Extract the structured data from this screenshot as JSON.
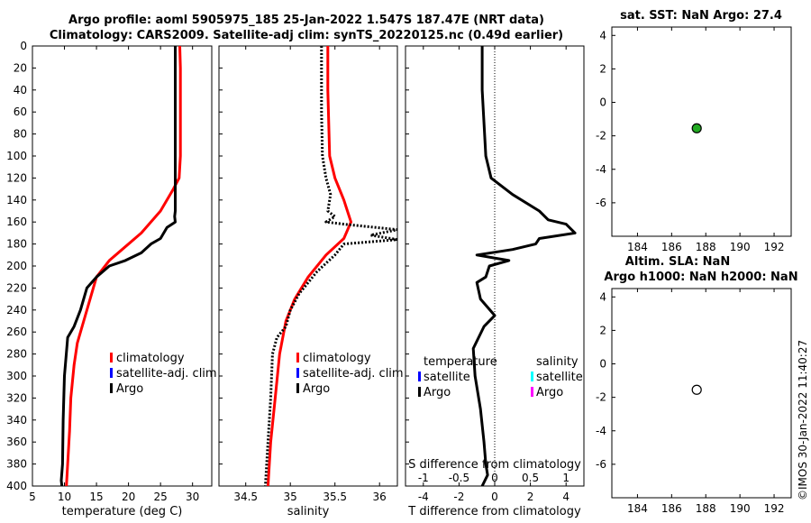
{
  "titles": {
    "line1": "Argo profile: aoml 5905975_185 25-Jan-2022 1.547S 187.47E (NRT data)",
    "line2": "Climatology: CARS2009. Satellite-adj clim: synTS_20220125.nc (0.49d earlier)",
    "sst": "sat. SST: NaN Argo: 27.4",
    "sla1": "Altim. SLA: NaN",
    "sla2": "Argo h1000: NaN h2000: NaN"
  },
  "stamp": "©IMOS 30-Jan-2022 11:40:27",
  "colors": {
    "climatology": "#ff0000",
    "satellite": "#0000ff",
    "argo": "#000000",
    "sat_salinity": "#00ffff",
    "argo_salinity": "#ff00ff",
    "marker_fill": "#22aa22"
  },
  "chart_data": [
    {
      "id": "temperature",
      "type": "line",
      "xlabel": "temperature (deg C)",
      "xlim": [
        5,
        33
      ],
      "xticks": [
        5,
        10,
        15,
        20,
        25,
        30
      ],
      "ylim": [
        0,
        400
      ],
      "yticks": [
        0,
        20,
        40,
        60,
        80,
        100,
        120,
        140,
        160,
        180,
        200,
        220,
        240,
        260,
        280,
        300,
        320,
        340,
        360,
        380,
        400
      ],
      "y_reversed": true,
      "legend": [
        "climatology",
        "satellite-adj. clim",
        "Argo"
      ],
      "series": [
        {
          "name": "climatology",
          "style": "solid-red",
          "points": [
            [
              28,
              0
            ],
            [
              28.1,
              20
            ],
            [
              28.1,
              60
            ],
            [
              28.1,
              100
            ],
            [
              27.9,
              120
            ],
            [
              27,
              130
            ],
            [
              25,
              150
            ],
            [
              22,
              170
            ],
            [
              19,
              185
            ],
            [
              17,
              195
            ],
            [
              15,
              210
            ],
            [
              14,
              230
            ],
            [
              13,
              250
            ],
            [
              12,
              270
            ],
            [
              11.5,
              290
            ],
            [
              11,
              320
            ],
            [
              10.8,
              350
            ],
            [
              10.5,
              380
            ],
            [
              10.3,
              400
            ]
          ]
        },
        {
          "name": "Argo",
          "style": "solid-black",
          "points": [
            [
              27.3,
              0
            ],
            [
              27.3,
              40
            ],
            [
              27.3,
              100
            ],
            [
              27.3,
              150
            ],
            [
              27.2,
              155
            ],
            [
              27.3,
              160
            ],
            [
              26,
              165
            ],
            [
              25,
              175
            ],
            [
              23.5,
              180
            ],
            [
              22,
              188
            ],
            [
              19.5,
              195
            ],
            [
              17,
              200
            ],
            [
              15,
              210
            ],
            [
              13.5,
              220
            ],
            [
              12.5,
              240
            ],
            [
              11.5,
              255
            ],
            [
              10.5,
              265
            ],
            [
              10,
              300
            ],
            [
              9.8,
              340
            ],
            [
              9.7,
              380
            ],
            [
              9.5,
              395
            ],
            [
              9.6,
              400
            ]
          ]
        }
      ]
    },
    {
      "id": "salinity",
      "type": "line",
      "xlabel": "salinity",
      "xlim": [
        34.2,
        36.2
      ],
      "xticks": [
        34.5,
        35,
        35.5,
        36
      ],
      "xtick_labels": [
        "34.5",
        "35",
        "35.5",
        "36"
      ],
      "ylim": [
        0,
        400
      ],
      "y_reversed": true,
      "legend": [
        "climatology",
        "satellite-adj. clim",
        "Argo"
      ],
      "series": [
        {
          "name": "climatology",
          "style": "solid-red",
          "points": [
            [
              35.42,
              0
            ],
            [
              35.42,
              40
            ],
            [
              35.44,
              100
            ],
            [
              35.5,
              120
            ],
            [
              35.6,
              140
            ],
            [
              35.68,
              160
            ],
            [
              35.6,
              175
            ],
            [
              35.4,
              190
            ],
            [
              35.2,
              210
            ],
            [
              35.05,
              230
            ],
            [
              34.95,
              250
            ],
            [
              34.88,
              280
            ],
            [
              34.83,
              320
            ],
            [
              34.78,
              360
            ],
            [
              34.75,
              400
            ]
          ]
        },
        {
          "name": "Argo",
          "style": "dotted-black",
          "points": [
            [
              35.35,
              0
            ],
            [
              35.35,
              60
            ],
            [
              35.36,
              100
            ],
            [
              35.4,
              120
            ],
            [
              35.45,
              135
            ],
            [
              35.42,
              150
            ],
            [
              35.5,
              155
            ],
            [
              35.4,
              160
            ],
            [
              35.6,
              162
            ],
            [
              36.2,
              167
            ],
            [
              35.9,
              172
            ],
            [
              36.2,
              176
            ],
            [
              35.6,
              180
            ],
            [
              35.5,
              190
            ],
            [
              35.3,
              205
            ],
            [
              35.1,
              225
            ],
            [
              35.0,
              240
            ],
            [
              34.95,
              255
            ],
            [
              34.85,
              265
            ],
            [
              34.8,
              280
            ],
            [
              34.78,
              320
            ],
            [
              34.75,
              360
            ],
            [
              34.72,
              400
            ]
          ]
        }
      ]
    },
    {
      "id": "difference",
      "type": "line",
      "xlabel": "T difference from climatology",
      "xlim": [
        -5,
        5
      ],
      "xticks": [
        -4,
        -2,
        0,
        2,
        4
      ],
      "top_axis_label": "S difference from climatology",
      "top_axis_ticks": [
        -1,
        -0.5,
        0,
        0.5,
        1
      ],
      "top_axis_tick_labels": [
        "-1",
        "-0.5",
        "0",
        "0.5",
        "1"
      ],
      "ylim": [
        0,
        400
      ],
      "y_reversed": true,
      "legend_groups": {
        "left_title": "temperature",
        "right_title": "salinity",
        "left": [
          "satellite",
          "Argo"
        ],
        "right": [
          "satellite",
          "Argo"
        ]
      },
      "series": [
        {
          "name": "T difference (Argo)",
          "style": "solid-black",
          "points": [
            [
              -0.7,
              0
            ],
            [
              -0.7,
              40
            ],
            [
              -0.5,
              100
            ],
            [
              -0.2,
              120
            ],
            [
              1,
              135
            ],
            [
              2.5,
              150
            ],
            [
              3,
              158
            ],
            [
              4,
              162
            ],
            [
              4.5,
              170
            ],
            [
              2.5,
              175
            ],
            [
              2.3,
              180
            ],
            [
              1,
              185
            ],
            [
              -1,
              190
            ],
            [
              0.8,
              195
            ],
            [
              -0.3,
              200
            ],
            [
              -0.5,
              210
            ],
            [
              -1,
              215
            ],
            [
              -0.8,
              230
            ],
            [
              0,
              245
            ],
            [
              -0.6,
              255
            ],
            [
              -1.2,
              275
            ],
            [
              -1.1,
              300
            ],
            [
              -0.8,
              330
            ],
            [
              -0.6,
              360
            ],
            [
              -0.5,
              380
            ],
            [
              -0.4,
              390
            ],
            [
              -0.7,
              400
            ]
          ]
        }
      ]
    },
    {
      "id": "sst_location",
      "type": "scatter",
      "xlim": [
        182.5,
        193
      ],
      "xticks": [
        184,
        186,
        188,
        190,
        192
      ],
      "ylim": [
        -8,
        4.5
      ],
      "yticks": [
        -6,
        -4,
        -2,
        0,
        2,
        4
      ],
      "points": [
        {
          "x": 187.47,
          "y": -1.547,
          "style": "filled-green"
        }
      ]
    },
    {
      "id": "sla_location",
      "type": "scatter",
      "xlim": [
        182.5,
        193
      ],
      "xticks": [
        184,
        186,
        188,
        190,
        192
      ],
      "ylim": [
        -8,
        4.5
      ],
      "yticks": [
        -6,
        -4,
        -2,
        0,
        2,
        4
      ],
      "points": [
        {
          "x": 187.47,
          "y": -1.547,
          "style": "open"
        }
      ]
    }
  ]
}
